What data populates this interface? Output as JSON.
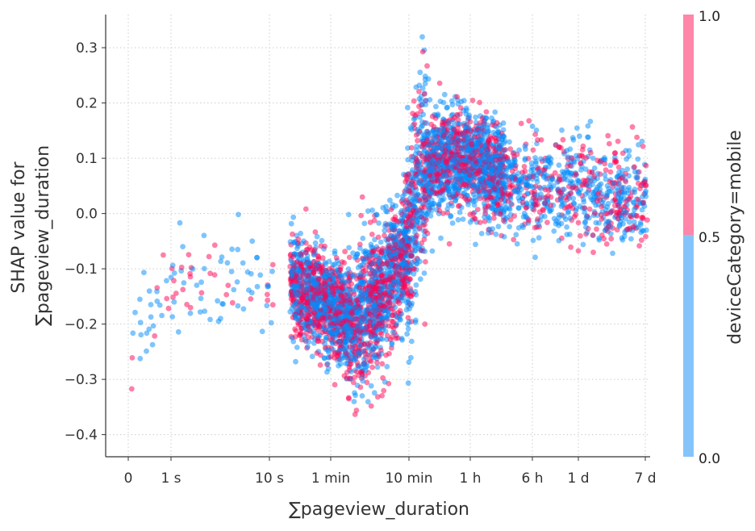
{
  "chart_data": {
    "type": "scatter",
    "title": "",
    "xlabel": "∑pageview_duration",
    "ylabel_line1": "SHAP value for",
    "ylabel_line2": "∑pageview_duration",
    "x_scale": "symmetric-log (duration)",
    "grid": true,
    "x_ticks": [
      {
        "label": "0",
        "seconds": 0
      },
      {
        "label": "1 s",
        "seconds": 1
      },
      {
        "label": "10 s",
        "seconds": 10
      },
      {
        "label": "1 min",
        "seconds": 60
      },
      {
        "label": "10 min",
        "seconds": 600
      },
      {
        "label": "1 h",
        "seconds": 3600
      },
      {
        "label": "6 h",
        "seconds": 21600
      },
      {
        "label": "1 d",
        "seconds": 86400
      },
      {
        "label": "7 d",
        "seconds": 604800
      }
    ],
    "y_ticks": [
      0.3,
      0.2,
      0.1,
      0.0,
      -0.1,
      -0.2,
      -0.3,
      -0.4
    ],
    "y_tick_labels": [
      "0.3",
      "0.2",
      "0.1",
      "0.0",
      "−0.1",
      "−0.2",
      "−0.3",
      "−0.4"
    ],
    "ylim": [
      -0.44,
      0.36
    ],
    "colorbar": {
      "label": "deviceCategory=mobile",
      "tick_labels": [
        "1.0",
        "0.5",
        "0.0"
      ],
      "tick_values": [
        1.0,
        0.5,
        0.0
      ],
      "colors": {
        "high": "#ff0051",
        "low": "#008bfb"
      }
    },
    "series": [
      {
        "name": "",
        "device_mobile": 0,
        "color": "#008bfb"
      },
      {
        "name": "",
        "device_mobile": 1,
        "color": "#ff0051"
      }
    ],
    "point_count_approx": 5000,
    "trend_points": [
      [
        0.1,
        -0.22
      ],
      [
        1,
        -0.15
      ],
      [
        5,
        -0.12
      ],
      [
        15,
        -0.12
      ],
      [
        40,
        -0.15
      ],
      [
        120,
        -0.2
      ],
      [
        300,
        -0.14
      ],
      [
        600,
        -0.05
      ],
      [
        900,
        0.08
      ],
      [
        3600,
        0.1
      ],
      [
        10000,
        0.06
      ],
      [
        50000,
        0.04
      ],
      [
        200000,
        0.04
      ],
      [
        600000,
        0.03
      ]
    ]
  }
}
